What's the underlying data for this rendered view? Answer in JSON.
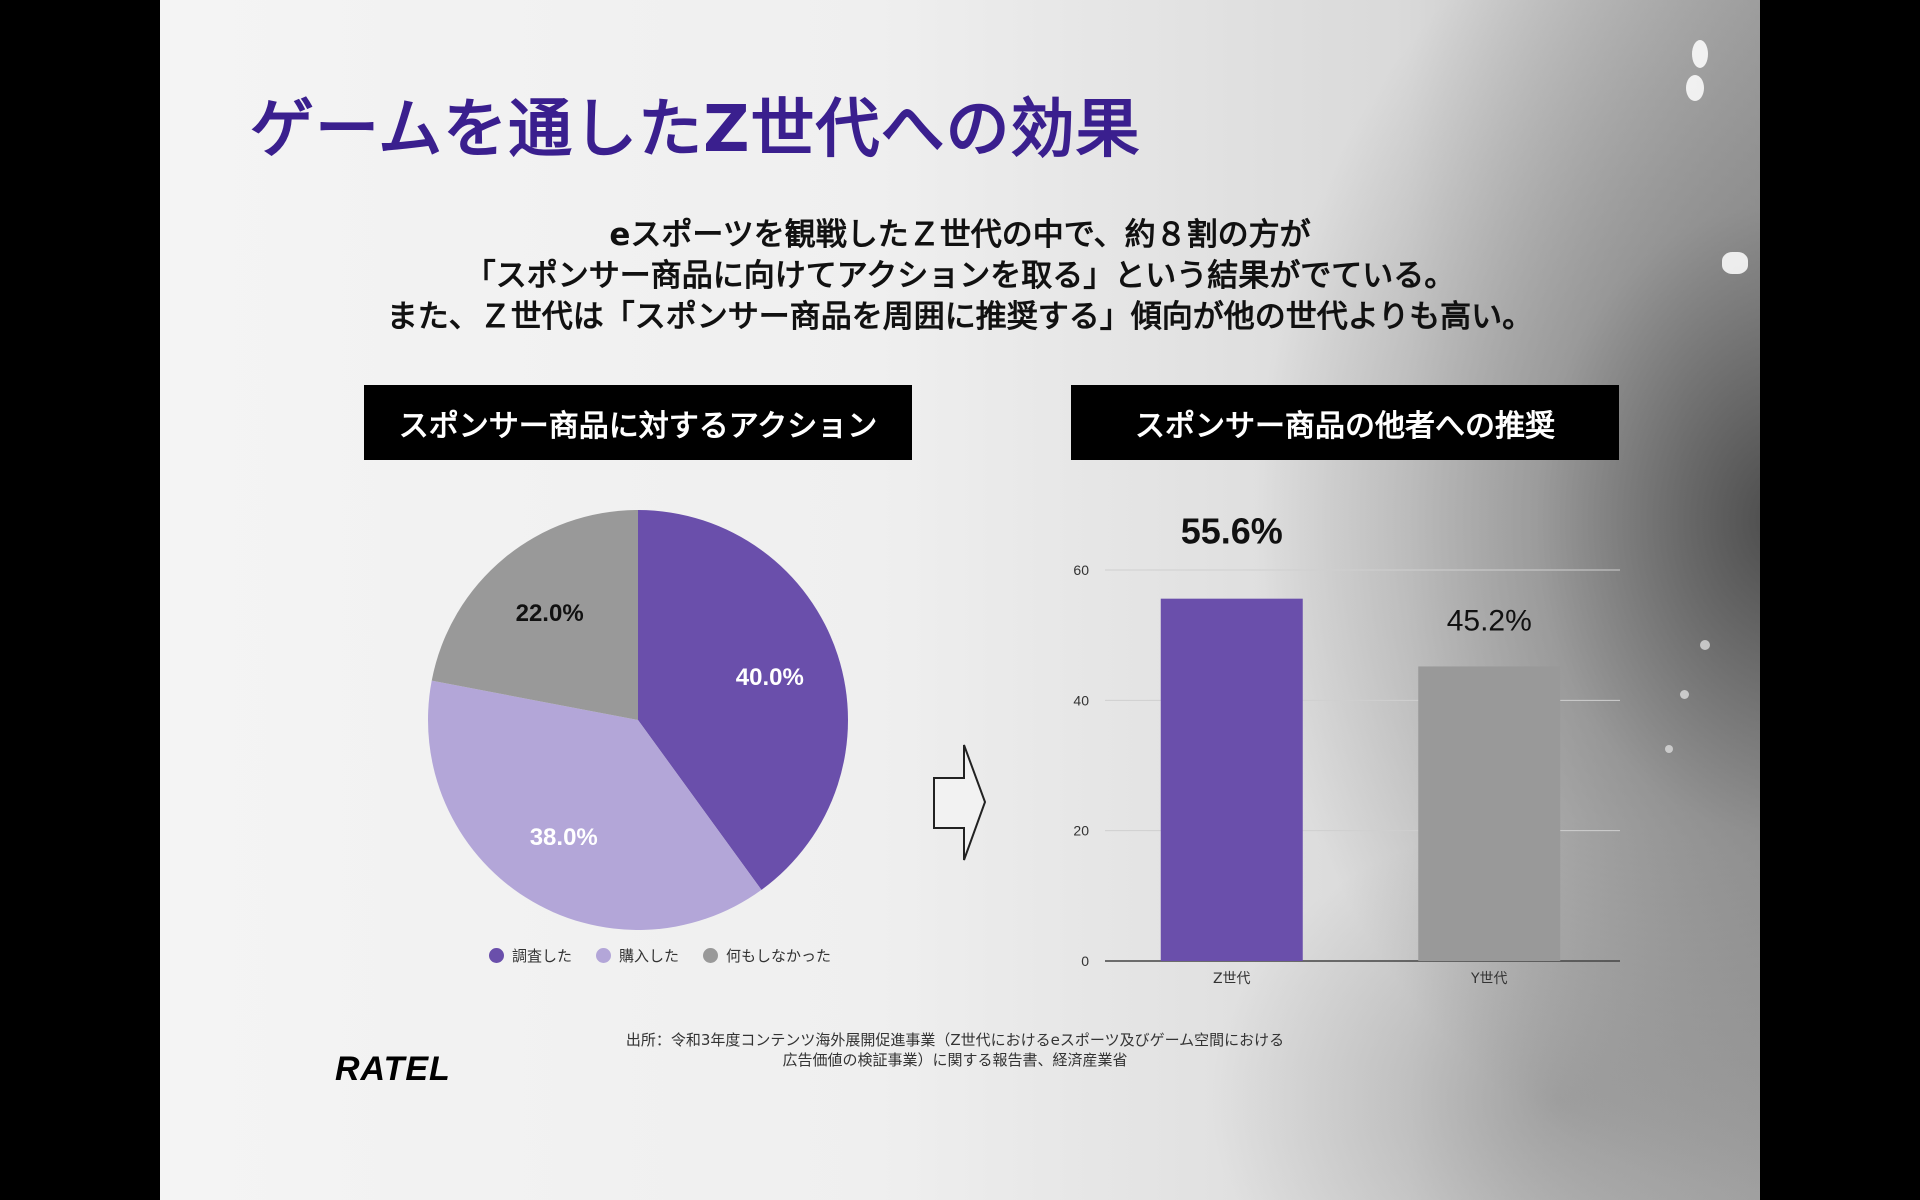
{
  "title": "ゲームを通したZ世代への効果",
  "lead": [
    "eスポーツを観戦したＺ世代の中で、約８割の方が",
    "「スポンサー商品に向けてアクションを取る」という結果がでている。",
    "また、Ｚ世代は「スポンサー商品を周囲に推奨する」傾向が他の世代よりも高い。"
  ],
  "left_panel": {
    "heading": "スポンサー商品に対するアクション"
  },
  "right_panel": {
    "heading": "スポンサー商品の他者への推奨"
  },
  "legend": [
    {
      "label": "調査した",
      "color": "#6a4fab"
    },
    {
      "label": "購入した",
      "color": "#b3a6d8"
    },
    {
      "label": "何もしなかった",
      "color": "#999999"
    }
  ],
  "source": [
    "出所：令和3年度コンテンツ海外展開促進事業（Z世代におけるeスポーツ及びゲーム空間における",
    "広告価値の検証事業）に関する報告書、経済産業省"
  ],
  "logo": "RATEL",
  "arrow_icon": "right-arrow-icon",
  "chart_data": [
    {
      "type": "pie",
      "categories": [
        "調査した",
        "購入した",
        "何もしなかった"
      ],
      "values": [
        40.0,
        38.0,
        22.0
      ],
      "labels": [
        "40.0%",
        "38.0%",
        "22.0%"
      ],
      "colors": [
        "#6a4fab",
        "#b3a6d8",
        "#999999"
      ],
      "label_colors": [
        "#ffffff",
        "#ffffff",
        "#111111"
      ],
      "legend": "bottom"
    },
    {
      "type": "bar",
      "categories": [
        "Z世代",
        "Y世代"
      ],
      "values": [
        55.6,
        45.2
      ],
      "labels": [
        "55.6%",
        "45.2%"
      ],
      "colors": [
        "#6a4fab",
        "#999999"
      ],
      "ylim": [
        0,
        60
      ],
      "yticks": [
        0,
        20,
        40,
        60
      ],
      "grid": true
    }
  ]
}
